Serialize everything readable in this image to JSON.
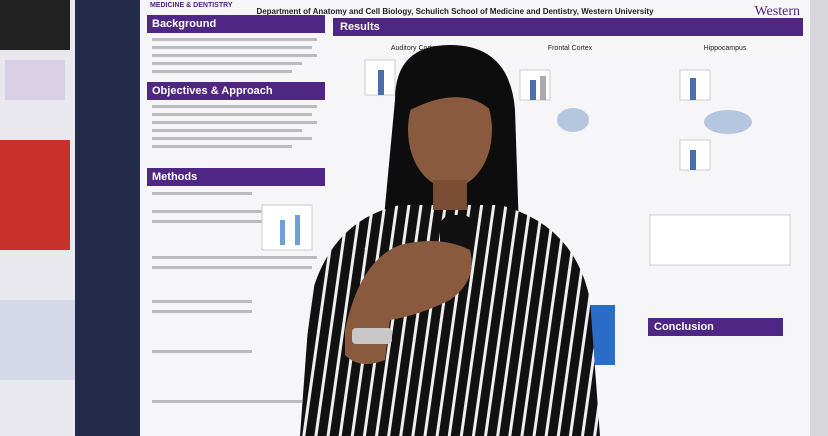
{
  "poster": {
    "school": "MEDICINE & DENTISTRY",
    "affiliation": "Department of Anatomy and Cell Biology, Schulich School of Medicine and Dentistry, Western University",
    "logo": "Western",
    "left_sections": [
      "Background",
      "Objectives & Approach",
      "Methods"
    ],
    "results": {
      "title": "Results",
      "columns": [
        "Auditory Cortex",
        "Frontal Cortex",
        "Hippocampus"
      ]
    },
    "conclusion": "Conclusion"
  }
}
